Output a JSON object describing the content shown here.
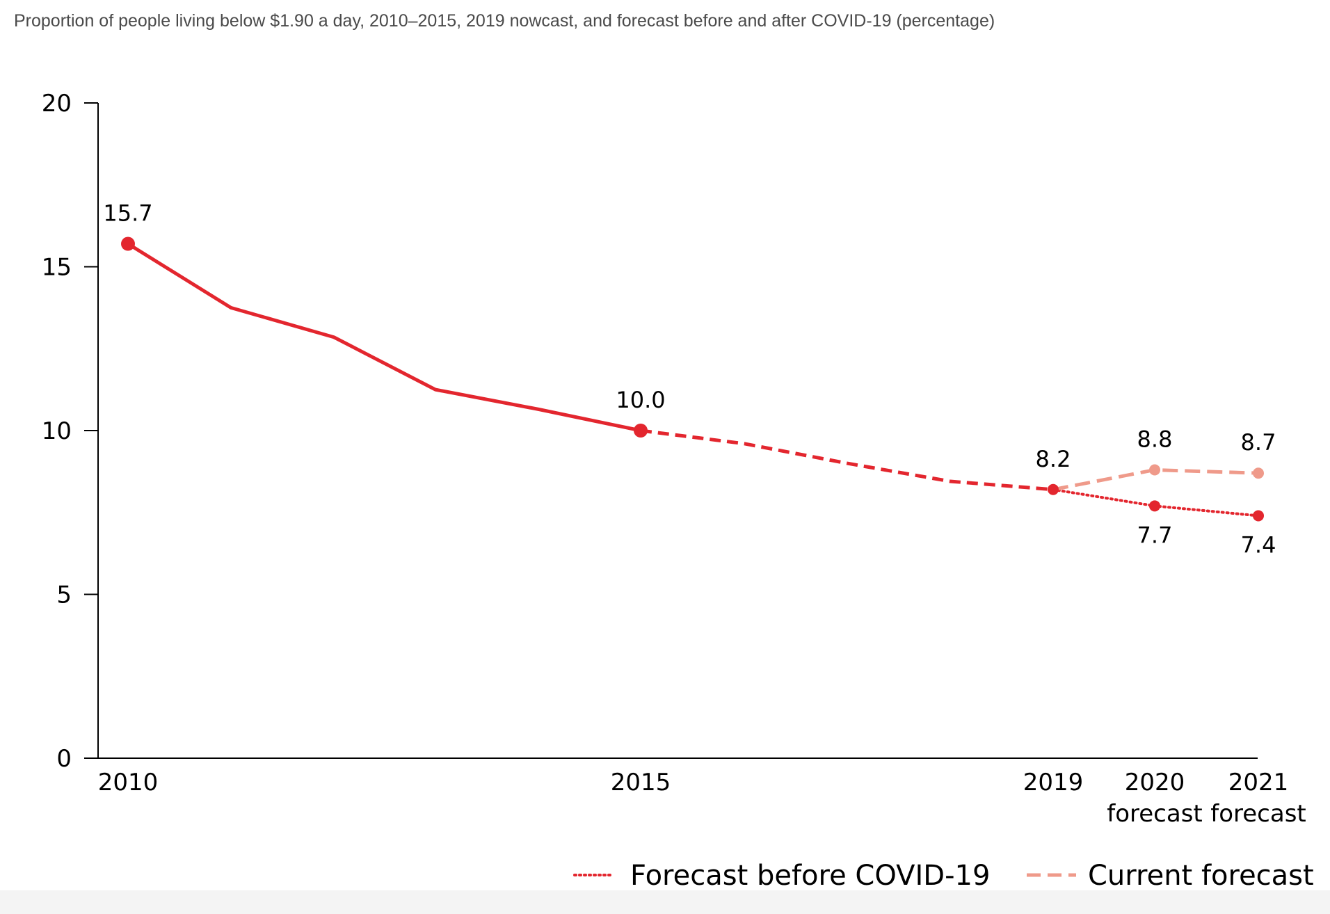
{
  "chart_data": {
    "type": "line",
    "title": "Proportion of people living below $1.90 a day, 2010–2015, 2019 nowcast, and forecast before and after COVID-19 (percentage)",
    "xlabel": "",
    "ylabel": "",
    "ylim": [
      0,
      20
    ],
    "y_ticks": [
      "0",
      "5",
      "10",
      "15",
      "20"
    ],
    "x_ticks": [
      {
        "x": 2010,
        "lines": [
          "2010"
        ]
      },
      {
        "x": 2015,
        "lines": [
          "2015"
        ]
      },
      {
        "x": 2019,
        "lines": [
          "2019"
        ]
      },
      {
        "x": 2020,
        "lines": [
          "2020",
          "forecast"
        ]
      },
      {
        "x": 2021,
        "lines": [
          "2021",
          "forecast"
        ]
      }
    ],
    "grid": false,
    "legend_position": "bottom-right",
    "series": [
      {
        "key": "observed",
        "style": "solid",
        "color": "#e3262e",
        "points": [
          [
            2010,
            15.7
          ],
          [
            2011,
            13.75
          ],
          [
            2012,
            12.85
          ],
          [
            2013,
            11.25
          ],
          [
            2014,
            10.65
          ],
          [
            2015,
            10.0
          ]
        ]
      },
      {
        "key": "nowcast",
        "style": "dashed",
        "color": "#e3262e",
        "points": [
          [
            2015,
            10.0
          ],
          [
            2016,
            9.6
          ],
          [
            2017,
            9.0
          ],
          [
            2018,
            8.45
          ],
          [
            2019,
            8.2
          ]
        ]
      },
      {
        "key": "forecast_before",
        "name": "Forecast before COVID-19",
        "style": "dotted",
        "color": "#e3262e",
        "points": [
          [
            2019,
            8.2
          ],
          [
            2020,
            7.7
          ],
          [
            2021,
            7.4
          ]
        ]
      },
      {
        "key": "current_forecast",
        "name": "Current forecast",
        "style": "dashed",
        "color": "#ef9a8a",
        "points": [
          [
            2019,
            8.2
          ],
          [
            2020,
            8.8
          ],
          [
            2021,
            8.7
          ]
        ]
      }
    ],
    "markers": [
      {
        "x": 2010,
        "y": 15.7,
        "color": "#e3262e",
        "size": "large"
      },
      {
        "x": 2015,
        "y": 10.0,
        "color": "#e3262e",
        "size": "large"
      },
      {
        "x": 2019,
        "y": 8.2,
        "color": "#e3262e",
        "size": "small"
      },
      {
        "x": 2020,
        "y": 7.7,
        "color": "#e3262e",
        "size": "small"
      },
      {
        "x": 2021,
        "y": 7.4,
        "color": "#e3262e",
        "size": "small"
      },
      {
        "x": 2020,
        "y": 8.8,
        "color": "#ef9a8a",
        "size": "small"
      },
      {
        "x": 2021,
        "y": 8.7,
        "color": "#ef9a8a",
        "size": "small"
      }
    ],
    "data_labels": [
      {
        "x": 2010,
        "y": 15.7,
        "text": "15.7",
        "position": "above"
      },
      {
        "x": 2015,
        "y": 10.0,
        "text": "10.0",
        "position": "above"
      },
      {
        "x": 2019,
        "y": 8.2,
        "text": "8.2",
        "position": "above"
      },
      {
        "x": 2020,
        "y": 8.8,
        "text": "8.8",
        "position": "above"
      },
      {
        "x": 2021,
        "y": 8.7,
        "text": "8.7",
        "position": "above"
      },
      {
        "x": 2020,
        "y": 7.7,
        "text": "7.7",
        "position": "below"
      },
      {
        "x": 2021,
        "y": 7.4,
        "text": "7.4",
        "position": "below"
      }
    ],
    "legend": [
      {
        "label": "Forecast before COVID-19",
        "style": "dotted",
        "color": "#e3262e"
      },
      {
        "label": "Current forecast",
        "style": "dashed",
        "color": "#ef9a8a"
      }
    ]
  }
}
